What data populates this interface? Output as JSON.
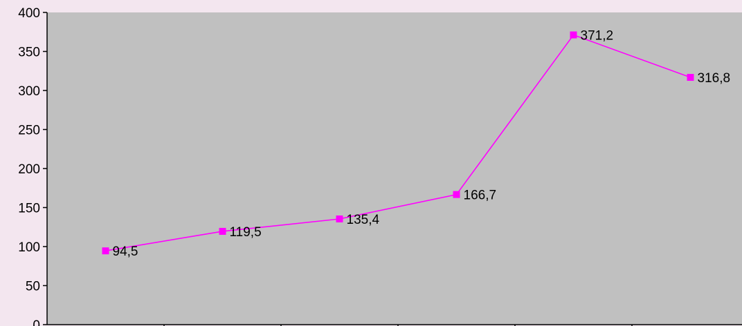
{
  "chart_data": {
    "type": "line",
    "title": "",
    "xlabel": "",
    "ylabel": "",
    "ylim": [
      0,
      400
    ],
    "yticks": [
      0,
      50,
      100,
      150,
      200,
      250,
      300,
      350,
      400
    ],
    "ytick_labels": [
      "0",
      "50",
      "100",
      "150",
      "200",
      "250",
      "300",
      "350",
      "400"
    ],
    "categories": [
      "",
      "",
      "",
      "",
      "",
      ""
    ],
    "grid": false,
    "legend": "none",
    "series": [
      {
        "values": [
          94.5,
          119.5,
          135.4,
          166.7,
          371.2,
          316.8
        ],
        "labels": [
          "94,5",
          "119,5",
          "135,4",
          "166,7",
          "371,2",
          "316,8"
        ],
        "color": "#ff00ff"
      }
    ],
    "plot_background": "#c0c0c0",
    "page_background": "#f3e6ef"
  }
}
